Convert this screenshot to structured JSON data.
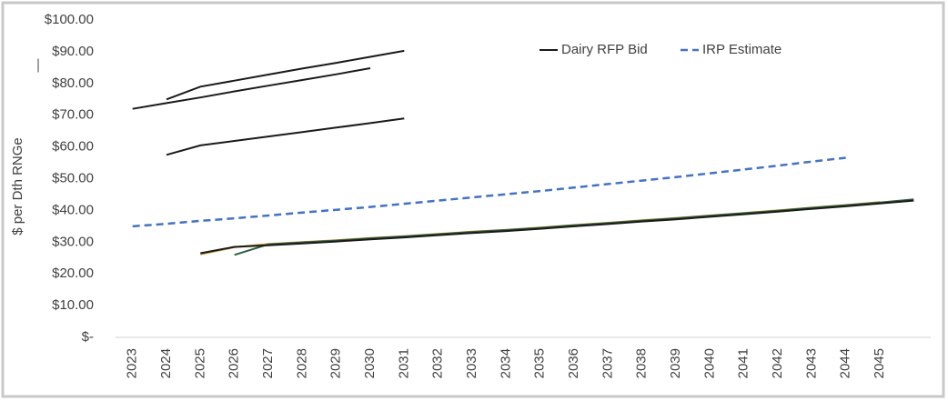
{
  "chart_data": {
    "type": "line",
    "y_label": "$ per Dth RNGe",
    "annotation": "—",
    "categories": [
      "2023",
      "2024",
      "2025",
      "2026",
      "2027",
      "2028",
      "2029",
      "2030",
      "2031",
      "2032",
      "2033",
      "2034",
      "2035",
      "2036",
      "2037",
      "2038",
      "2039",
      "2040",
      "2041",
      "2042",
      "2043",
      "2044",
      "2045",
      null
    ],
    "series": [
      {
        "name": "Dairy RFP Bid",
        "color": "#1a1a1a",
        "values": [
          72,
          73.8,
          75.6,
          77.5,
          79.3,
          81.1,
          82.9,
          84.8,
          null,
          null,
          null,
          null,
          null,
          null,
          null,
          null,
          null,
          null,
          null,
          null,
          null,
          null,
          null,
          null
        ]
      },
      {
        "name": "Dairy RFP Bid",
        "color": "#1a1a1a",
        "values": [
          null,
          75,
          79,
          80.9,
          82.8,
          84.7,
          86.5,
          88.4,
          90.3,
          null,
          null,
          null,
          null,
          null,
          null,
          null,
          null,
          null,
          null,
          null,
          null,
          null,
          null,
          null
        ]
      },
      {
        "name": "Dairy RFP Bid",
        "color": "#1a1a1a",
        "values": [
          null,
          57.5,
          60.5,
          61.9,
          63.3,
          64.7,
          66.1,
          67.5,
          69,
          null,
          null,
          null,
          null,
          null,
          null,
          null,
          null,
          null,
          null,
          null,
          null,
          null,
          null,
          null
        ]
      },
      {
        "name": "Dairy RFP Bid",
        "color": "#c8922a",
        "values": [
          null,
          null,
          26.2,
          28.4,
          29.4,
          30,
          30.6,
          31.3,
          31.9,
          32.6,
          33.3,
          33.9,
          34.6,
          35.4,
          36.1,
          36.9,
          37.6,
          38.4,
          39.2,
          40,
          40.9,
          41.7,
          42.6,
          null
        ]
      },
      {
        "name": "Dairy RFP Bid",
        "color": "#2e5e3e",
        "values": [
          null,
          null,
          null,
          26,
          29.3,
          29.9,
          30.5,
          31.2,
          31.8,
          32.5,
          33.2,
          33.8,
          34.5,
          35.3,
          36,
          36.8,
          37.5,
          38.3,
          39.1,
          39.9,
          40.8,
          41.6,
          42.5,
          43.5
        ]
      },
      {
        "name": "Dairy RFP Bid",
        "color": "#1a1a1a",
        "values": [
          null,
          null,
          26.5,
          28.5,
          29,
          29.6,
          30.2,
          30.9,
          31.5,
          32.2,
          32.9,
          33.5,
          34.2,
          35,
          35.7,
          36.5,
          37.2,
          38,
          38.8,
          39.6,
          40.5,
          41.3,
          42.2,
          43.1
        ]
      },
      {
        "name": "IRP Estimate",
        "color": "#4472c4",
        "dash": true,
        "values": [
          35,
          35.8,
          36.7,
          37.5,
          38.4,
          39.3,
          40.2,
          41.1,
          42.1,
          43.1,
          44.1,
          45.1,
          46.1,
          47.2,
          48.3,
          49.4,
          50.5,
          51.7,
          52.9,
          54.1,
          55.4,
          56.6,
          null,
          null
        ]
      }
    ],
    "ylim": [
      0,
      100
    ],
    "yticks": [
      {
        "value": 0,
        "label": "$-"
      },
      {
        "value": 10,
        "label": "$10.00"
      },
      {
        "value": 20,
        "label": "$20.00"
      },
      {
        "value": 30,
        "label": "$30.00"
      },
      {
        "value": 40,
        "label": "$40.00"
      },
      {
        "value": 50,
        "label": "$50.00"
      },
      {
        "value": 60,
        "label": "$60.00"
      },
      {
        "value": 70,
        "label": "$70.00"
      },
      {
        "value": 80,
        "label": "$80.00"
      },
      {
        "value": 90,
        "label": "$90.00"
      },
      {
        "value": 100,
        "label": "$100.00"
      }
    ],
    "grid": false
  }
}
